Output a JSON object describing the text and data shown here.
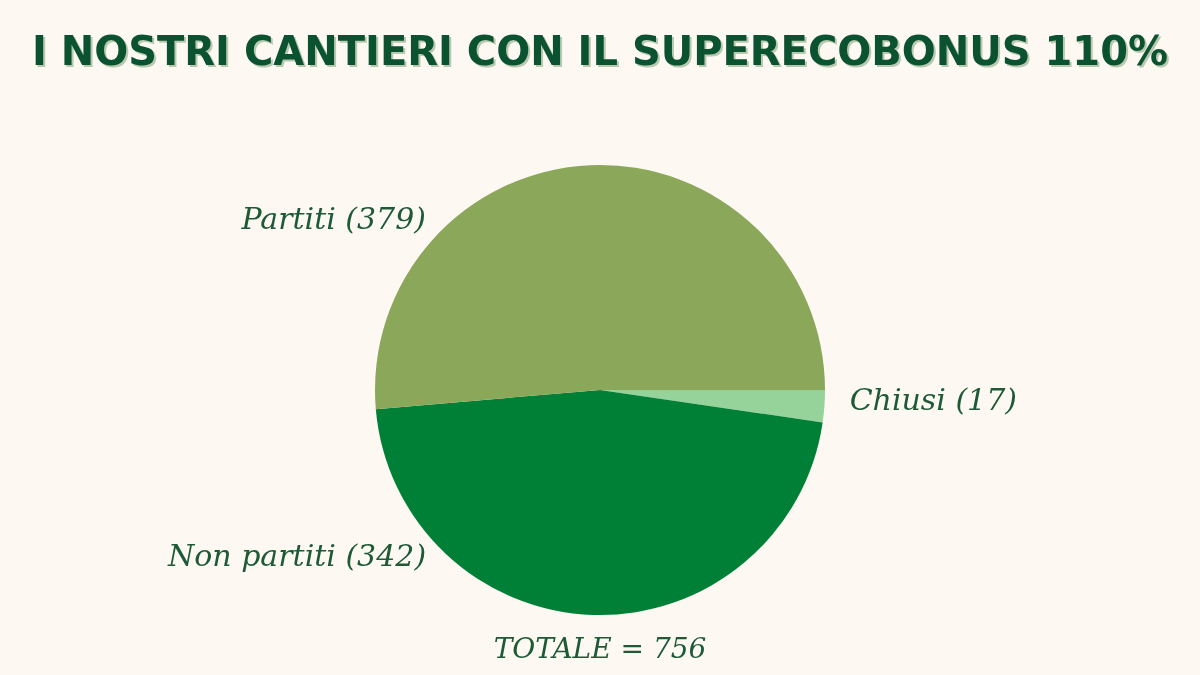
{
  "chart_data": {
    "type": "pie",
    "title": "I NOSTRI CANTIERI CON IL SUPERECOBONUS 110%",
    "categories": [
      "Chiusi (17)",
      "Non partiti (342)",
      "Partiti (379)"
    ],
    "values": [
      17,
      342,
      379
    ],
    "colors": [
      "#95d39a",
      "#007f36",
      "#8ba75a"
    ],
    "legend": false,
    "annotations": [
      "TOTALE = 756"
    ]
  }
}
